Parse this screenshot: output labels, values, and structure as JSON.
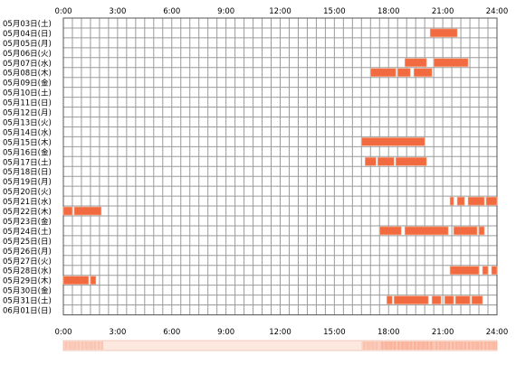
{
  "chart_data": {
    "type": "timeline",
    "x_unit": "hour",
    "xlim": [
      0,
      24
    ],
    "x_ticks": [
      0,
      3,
      6,
      9,
      12,
      15,
      18,
      21,
      24
    ],
    "x_tick_labels": [
      "0:00",
      "3:00",
      "6:00",
      "9:00",
      "12:00",
      "15:00",
      "18:00",
      "21:00",
      "24:00"
    ],
    "rows": [
      {
        "label": "05月03日(土)",
        "segments": []
      },
      {
        "label": "05月04日(日)",
        "segments": [
          [
            20.3,
            21.8
          ]
        ]
      },
      {
        "label": "05月05日(月)",
        "segments": []
      },
      {
        "label": "05月06日(火)",
        "segments": []
      },
      {
        "label": "05月07日(水)",
        "segments": [
          [
            18.9,
            20.1
          ],
          [
            20.5,
            22.4
          ]
        ]
      },
      {
        "label": "05月08日(木)",
        "segments": [
          [
            17.0,
            18.4
          ],
          [
            18.5,
            19.2
          ],
          [
            19.4,
            20.4
          ]
        ]
      },
      {
        "label": "05月09日(金)",
        "segments": []
      },
      {
        "label": "05月10日(土)",
        "segments": []
      },
      {
        "label": "05月11日(日)",
        "segments": []
      },
      {
        "label": "05月12日(月)",
        "segments": []
      },
      {
        "label": "05月13日(火)",
        "segments": []
      },
      {
        "label": "05月14日(水)",
        "segments": []
      },
      {
        "label": "05月15日(木)",
        "segments": [
          [
            16.5,
            20.0
          ]
        ]
      },
      {
        "label": "05月16日(金)",
        "segments": []
      },
      {
        "label": "05月17日(土)",
        "segments": [
          [
            16.7,
            17.3
          ],
          [
            17.4,
            18.3
          ],
          [
            18.4,
            20.1
          ]
        ]
      },
      {
        "label": "05月18日(日)",
        "segments": []
      },
      {
        "label": "05月19日(月)",
        "segments": []
      },
      {
        "label": "05月20日(火)",
        "segments": []
      },
      {
        "label": "05月21日(水)",
        "segments": [
          [
            21.4,
            21.6
          ],
          [
            21.8,
            22.2
          ],
          [
            22.4,
            23.3
          ],
          [
            23.4,
            24.0
          ]
        ]
      },
      {
        "label": "05月22日(木)",
        "segments": [
          [
            0.0,
            0.5
          ],
          [
            0.6,
            2.1
          ]
        ]
      },
      {
        "label": "05月23日(金)",
        "segments": []
      },
      {
        "label": "05月24日(土)",
        "segments": [
          [
            17.5,
            18.7
          ],
          [
            18.9,
            21.3
          ],
          [
            21.6,
            22.9
          ],
          [
            23.0,
            23.3
          ]
        ]
      },
      {
        "label": "05月25日(日)",
        "segments": []
      },
      {
        "label": "05月26日(月)",
        "segments": []
      },
      {
        "label": "05月27日(火)",
        "segments": []
      },
      {
        "label": "05月28日(水)",
        "segments": [
          [
            21.4,
            23.0
          ],
          [
            23.2,
            23.5
          ],
          [
            23.7,
            24.0
          ]
        ]
      },
      {
        "label": "05月29日(木)",
        "segments": [
          [
            0.0,
            1.4
          ],
          [
            1.5,
            1.8
          ]
        ]
      },
      {
        "label": "05月30日(金)",
        "segments": []
      },
      {
        "label": "05月31日(土)",
        "segments": [
          [
            17.9,
            18.2
          ],
          [
            18.3,
            20.2
          ],
          [
            20.4,
            20.9
          ],
          [
            21.1,
            21.6
          ],
          [
            21.7,
            22.5
          ],
          [
            22.6,
            23.2
          ]
        ]
      },
      {
        "label": "06月01日(日)",
        "segments": []
      }
    ],
    "density_strip": [
      {
        "range": [
          0,
          2.2
        ],
        "intensity": 0.35
      },
      {
        "range": [
          16.5,
          17.5
        ],
        "intensity": 0.4
      },
      {
        "range": [
          17.5,
          20.5
        ],
        "intensity": 0.55
      },
      {
        "range": [
          20.5,
          24
        ],
        "intensity": 0.5
      }
    ]
  },
  "colors": {
    "bar": "#f26a3f",
    "bar_edge": "#ffb394",
    "grid": "#9b9b9b",
    "frame": "#555555",
    "strip_base": "#fde8e0",
    "strip_fill": "#f5805a"
  }
}
